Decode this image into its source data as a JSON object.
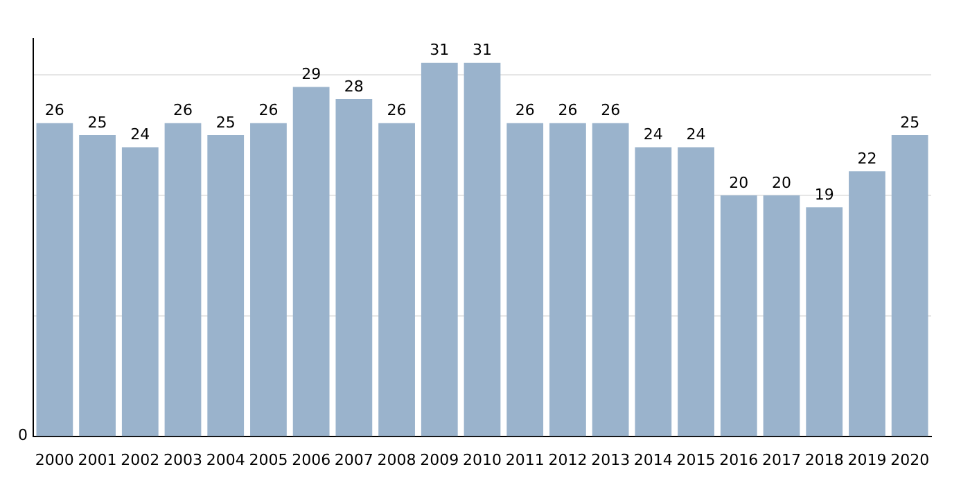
{
  "chart_data": {
    "type": "bar",
    "categories": [
      "2000",
      "2001",
      "2002",
      "2003",
      "2004",
      "2005",
      "2006",
      "2007",
      "2008",
      "2009",
      "2010",
      "2011",
      "2012",
      "2013",
      "2014",
      "2015",
      "2016",
      "2017",
      "2018",
      "2019",
      "2020"
    ],
    "values": [
      26,
      25,
      24,
      26,
      25,
      26,
      29,
      28,
      26,
      31,
      31,
      26,
      26,
      26,
      24,
      24,
      20,
      20,
      19,
      22,
      25
    ],
    "color": "#9ab3cc",
    "ylim": [
      0,
      33
    ],
    "annotations": [
      "0"
    ],
    "yticks": [
      {
        "value": 10,
        "label": null
      },
      {
        "value": 20,
        "label": null
      },
      {
        "value": 30,
        "label": null
      }
    ],
    "grid": "y",
    "data_labels": true,
    "legend": false
  }
}
